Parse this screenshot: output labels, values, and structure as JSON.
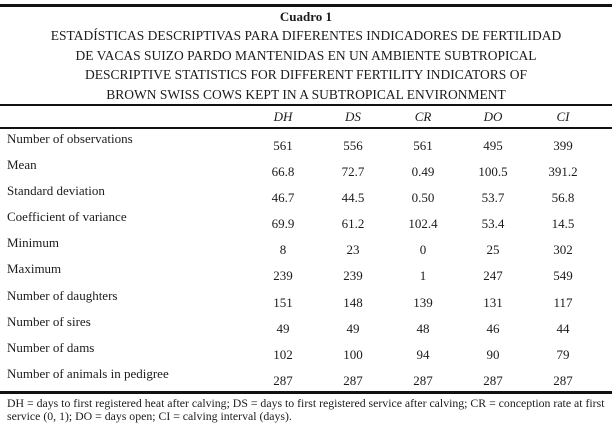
{
  "table": {
    "label": "Cuadro 1",
    "title_lines": [
      "ESTADÍSTICAS DESCRIPTIVAS PARA DIFERENTES INDICADORES DE FERTILIDAD",
      "DE VACAS SUIZO PARDO MANTENIDAS EN UN AMBIENTE SUBTROPICAL",
      "DESCRIPTIVE STATISTICS FOR DIFFERENT FERTILITY INDICATORS OF",
      "BROWN SWISS COWS KEPT IN A SUBTROPICAL ENVIRONMENT"
    ],
    "columns": [
      "DH",
      "DS",
      "CR",
      "DO",
      "CI"
    ],
    "rows": [
      {
        "label": "Number of observations",
        "values": [
          "561",
          "556",
          "561",
          "495",
          "399"
        ]
      },
      {
        "label": "Mean",
        "values": [
          "66.8",
          "72.7",
          "0.49",
          "100.5",
          "391.2"
        ]
      },
      {
        "label": "Standard deviation",
        "values": [
          "46.7",
          "44.5",
          "0.50",
          "53.7",
          "56.8"
        ]
      },
      {
        "label": "Coefficient of variance",
        "values": [
          "69.9",
          "61.2",
          "102.4",
          "53.4",
          "14.5"
        ]
      },
      {
        "label": "Minimum",
        "values": [
          "8",
          "23",
          "0",
          "25",
          "302"
        ]
      },
      {
        "label": "Maximum",
        "values": [
          "239",
          "239",
          "1",
          "247",
          "549"
        ]
      },
      {
        "label": "Number of daughters",
        "values": [
          "151",
          "148",
          "139",
          "131",
          "117"
        ]
      },
      {
        "label": "Number of sires",
        "values": [
          "49",
          "49",
          "48",
          "46",
          "44"
        ]
      },
      {
        "label": "Number of dams",
        "values": [
          "102",
          "100",
          "94",
          "90",
          "79"
        ]
      },
      {
        "label": "Number of animals in pedigree",
        "values": [
          "287",
          "287",
          "287",
          "287",
          "287"
        ]
      }
    ],
    "footnote": "DH = days to first registered heat after calving; DS = days to first registered service after calving; CR = conception rate at first service (0, 1); DO = days open; CI = calving interval (days).",
    "colors": {
      "text": "#1b1b1b",
      "rule": "#121212",
      "background": "#ffffff"
    }
  }
}
